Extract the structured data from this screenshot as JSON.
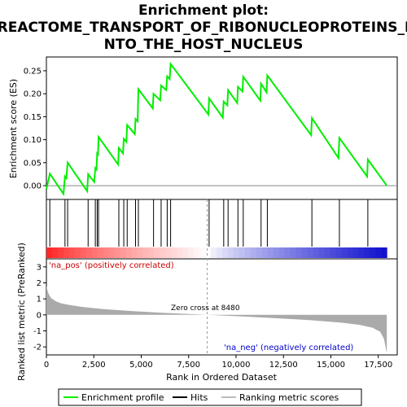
{
  "chart_data": {
    "type": "line",
    "title_lines": [
      "Enrichment plot:",
      "REACTOME_TRANSPORT_OF_RIBONUCLEOPROTEINS_I",
      "NTO_THE_HOST_NUCLEUS"
    ],
    "xlabel": "Rank in Ordered Dataset",
    "top_ylabel": "Enrichment score (ES)",
    "bottom_ylabel": "Ranked list metric (PreRanked)",
    "xlim": [
      0,
      18500
    ],
    "x_ticks": [
      0,
      2500,
      5000,
      7500,
      10000,
      12500,
      15000,
      17500
    ],
    "x_tick_labels": [
      "0",
      "2,500",
      "5,000",
      "7,500",
      "10,000",
      "12,500",
      "15,000",
      "17,500"
    ],
    "es_ylim": [
      -0.03,
      0.28
    ],
    "es_ticks": [
      0.0,
      0.05,
      0.1,
      0.15,
      0.2,
      0.25
    ],
    "es_tick_labels": [
      "0.00",
      "0.05",
      "0.10",
      "0.15",
      "0.20",
      "0.25"
    ],
    "metric_ylim": [
      -2.5,
      3.5
    ],
    "metric_ticks": [
      -2,
      -1,
      0,
      1,
      2,
      3
    ],
    "metric_tick_labels": [
      "-2",
      "-1",
      "0",
      "1",
      "2",
      "3"
    ],
    "hits": [
      180,
      980,
      1120,
      2200,
      2580,
      2680,
      2750,
      3820,
      4080,
      4260,
      4700,
      4850,
      5650,
      6050,
      6370,
      6550,
      8580,
      9350,
      9580,
      10100,
      10380,
      11320,
      11650,
      14000,
      15450,
      16950
    ],
    "es_series": {
      "name": "Enrichment profile",
      "x": [
        0,
        180,
        900,
        980,
        1050,
        1120,
        2150,
        2200,
        2520,
        2580,
        2640,
        2680,
        2720,
        2750,
        3780,
        3820,
        4040,
        4080,
        4220,
        4260,
        4660,
        4700,
        4810,
        4850,
        5610,
        5650,
        6000,
        6050,
        6320,
        6370,
        6500,
        6550,
        8540,
        8580,
        9300,
        9350,
        9540,
        9580,
        10060,
        10100,
        10340,
        10380,
        11280,
        11320,
        11610,
        11650,
        13960,
        14000,
        15400,
        15450,
        16910,
        16950,
        17950
      ],
      "values": [
        -0.008,
        0.026,
        -0.018,
        0.02,
        0.016,
        0.05,
        -0.012,
        0.025,
        0.008,
        0.038,
        0.035,
        0.07,
        0.068,
        0.106,
        0.046,
        0.082,
        0.07,
        0.102,
        0.095,
        0.132,
        0.112,
        0.145,
        0.14,
        0.21,
        0.168,
        0.2,
        0.186,
        0.218,
        0.208,
        0.238,
        0.232,
        0.265,
        0.155,
        0.19,
        0.148,
        0.183,
        0.175,
        0.208,
        0.18,
        0.215,
        0.205,
        0.237,
        0.185,
        0.222,
        0.203,
        0.24,
        0.11,
        0.147,
        0.06,
        0.104,
        0.02,
        0.057,
        0.0
      ]
    },
    "metric_profile": {
      "name": "Ranking metric scores",
      "x": [
        0,
        100,
        250,
        500,
        800,
        1200,
        2000,
        3000,
        4500,
        6000,
        7500,
        8480,
        10000,
        12000,
        14000,
        15500,
        16500,
        17200,
        17600,
        17800,
        17950
      ],
      "values": [
        1.8,
        1.35,
        1.05,
        0.85,
        0.72,
        0.62,
        0.48,
        0.36,
        0.24,
        0.14,
        0.06,
        0.0,
        -0.08,
        -0.2,
        -0.34,
        -0.48,
        -0.62,
        -0.8,
        -1.05,
        -1.5,
        -2.4
      ]
    },
    "zero_cross": 8480,
    "annotations": {
      "pos": "'na_pos' (positively correlated)",
      "neg": "'na_neg' (negatively correlated)",
      "zero": "Zero cross at 8480"
    },
    "legend": [
      {
        "label": "Enrichment profile",
        "color": "#00ee00"
      },
      {
        "label": "Hits",
        "color": "#000000"
      },
      {
        "label": "Ranking metric scores",
        "color": "#bbbbbb"
      }
    ],
    "legend_placement": "bottom",
    "colors": {
      "es_line": "#00ee00",
      "hit": "#000000",
      "metric": "#aaaaaa",
      "pos": "#cc0000",
      "neg": "#0000cc",
      "grid_bg": "#ffffff"
    }
  }
}
